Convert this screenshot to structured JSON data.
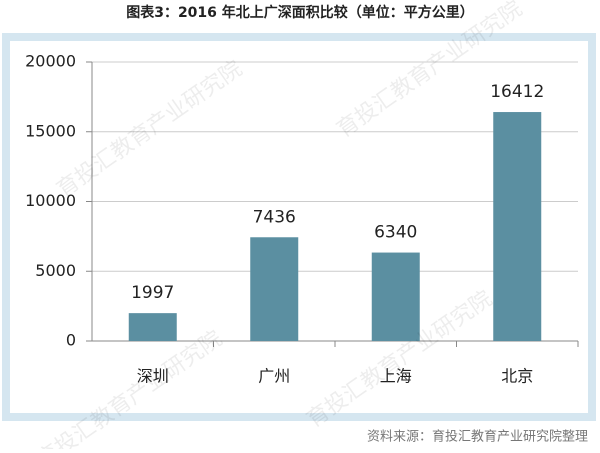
{
  "chart_data": {
    "type": "bar",
    "title": "图表3：2016 年北上广深面积比较（单位：平方公里）",
    "categories": [
      "深圳",
      "广州",
      "上海",
      "北京"
    ],
    "values": [
      1997,
      7436,
      6340,
      16412
    ],
    "color": "#5b8fa1",
    "ylim": [
      0,
      20000
    ],
    "yticks": [
      0,
      5000,
      10000,
      15000,
      20000
    ],
    "grid": true,
    "source": "资料来源：育投汇教育产业研究院整理",
    "watermark": "育投汇教育产业研究院"
  }
}
